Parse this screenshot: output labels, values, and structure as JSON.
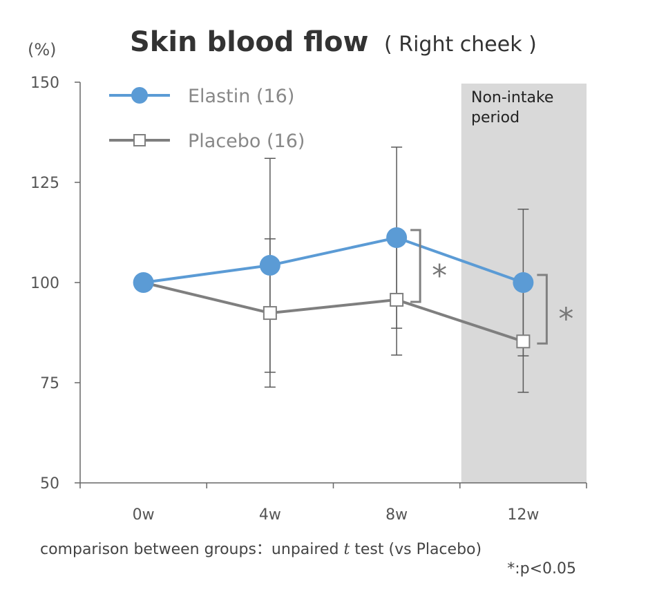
{
  "chart_data": {
    "type": "line",
    "title": "Skin blood flow",
    "subtitle": "( Right cheek )",
    "ylabel": "(%)",
    "xlabel": "",
    "categories": [
      "0w",
      "4w",
      "8w",
      "12w"
    ],
    "ylim": [
      50,
      150
    ],
    "yticks": [
      "50",
      "75",
      "100",
      "125",
      "150"
    ],
    "grid": false,
    "legend_position": "top-left",
    "series": [
      {
        "name": "Elastin (16)",
        "color": "#5b9bd5",
        "marker": "filled-circle",
        "values": [
          100,
          104.3,
          111.2,
          100
        ],
        "sd": [
          0,
          26.7,
          22.6,
          18.3
        ]
      },
      {
        "name": "Placebo (16)",
        "color": "#7f7f7f",
        "marker": "open-square",
        "values": [
          100,
          92.4,
          95.7,
          85.3
        ],
        "sd": [
          0,
          18.5,
          13.8,
          12.7
        ]
      }
    ],
    "shaded_region": {
      "label_line1": "Non-intake",
      "label_line2": "period",
      "category": "12w",
      "color": "#d9d9d9"
    },
    "significance": [
      {
        "category": "8w",
        "mark": "*"
      },
      {
        "category": "12w",
        "mark": "*"
      }
    ],
    "footnote_line1_a": "comparison between groups：unpaired ",
    "footnote_line1_t": "t",
    "footnote_line1_b": " test (vs Placebo)",
    "footnote_line2": "*:p<0.05"
  }
}
